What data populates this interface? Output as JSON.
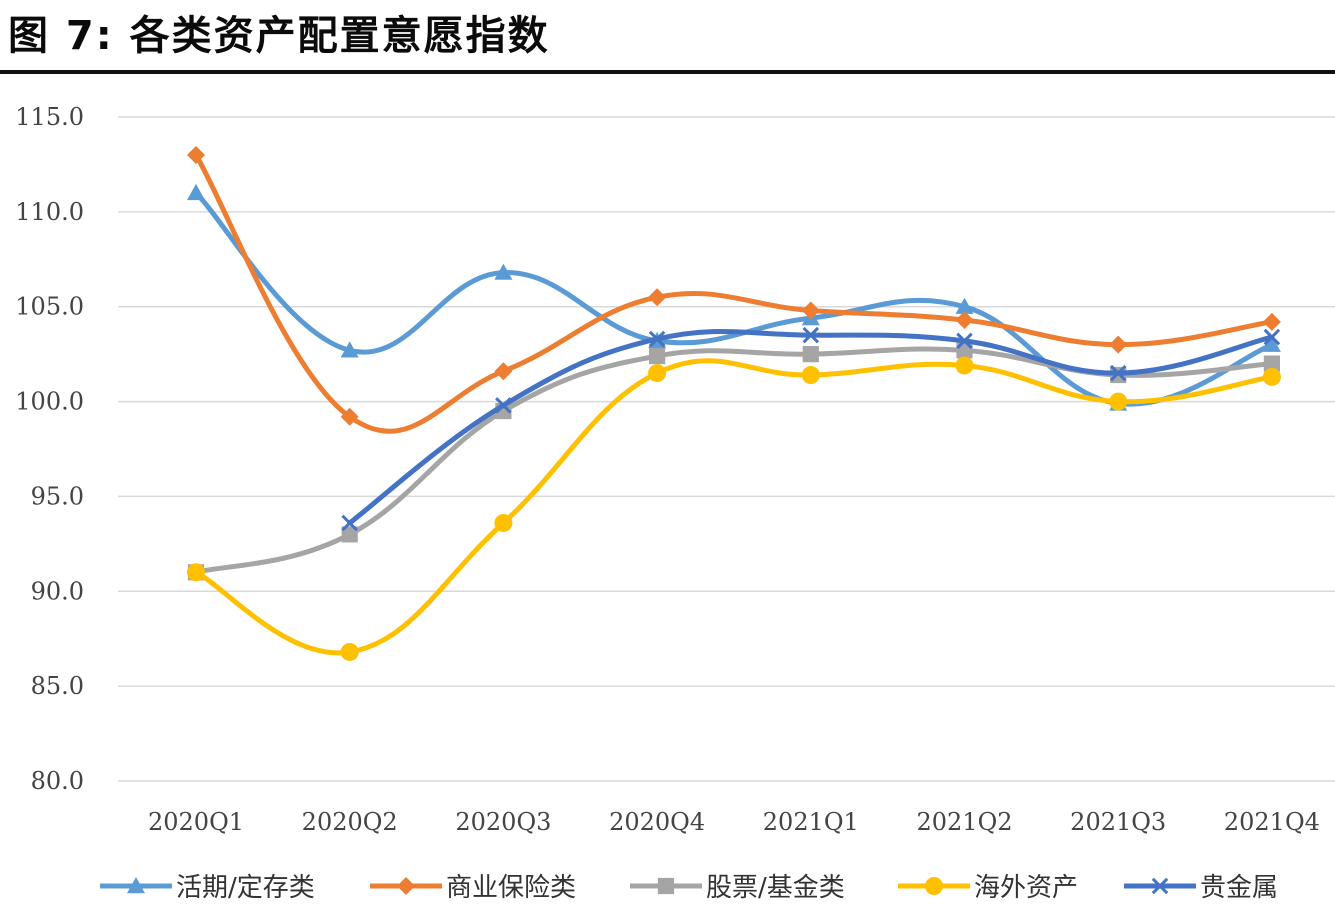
{
  "figure": {
    "title": "图 7:  各类资产配置意愿指数"
  },
  "chart_data": {
    "type": "line",
    "title": "",
    "xlabel": "",
    "ylabel": "",
    "categories": [
      "2020Q1",
      "2020Q2",
      "2020Q3",
      "2020Q4",
      "2021Q1",
      "2021Q2",
      "2021Q3",
      "2021Q4"
    ],
    "ylim": [
      80.0,
      115.0
    ],
    "yticks": [
      "80.0",
      "85.0",
      "90.0",
      "95.0",
      "100.0",
      "105.0",
      "110.0",
      "115.0"
    ],
    "grid": "horizontal",
    "legend": "bottom",
    "series": [
      {
        "name": "活期/定存类",
        "color": "#5b9bd5",
        "marker": "triangle",
        "values": [
          111.0,
          102.7,
          106.8,
          103.2,
          104.4,
          105.0,
          99.9,
          103.0
        ]
      },
      {
        "name": "商业保险类",
        "color": "#ed7d31",
        "marker": "diamond",
        "values": [
          113.0,
          99.2,
          101.6,
          105.5,
          104.8,
          104.3,
          103.0,
          104.2
        ]
      },
      {
        "name": "股票/基金类",
        "color": "#a5a5a5",
        "marker": "square",
        "values": [
          91.0,
          93.0,
          99.5,
          102.4,
          102.5,
          102.7,
          101.4,
          102.0
        ]
      },
      {
        "name": "海外资产",
        "color": "#ffc000",
        "marker": "circle",
        "values": [
          91.0,
          86.8,
          93.6,
          101.5,
          101.4,
          101.9,
          100.0,
          101.3
        ]
      },
      {
        "name": "贵金属",
        "color": "#4472c4",
        "marker": "x",
        "values": [
          null,
          93.6,
          99.8,
          103.3,
          103.5,
          103.2,
          101.5,
          103.4
        ]
      }
    ]
  }
}
